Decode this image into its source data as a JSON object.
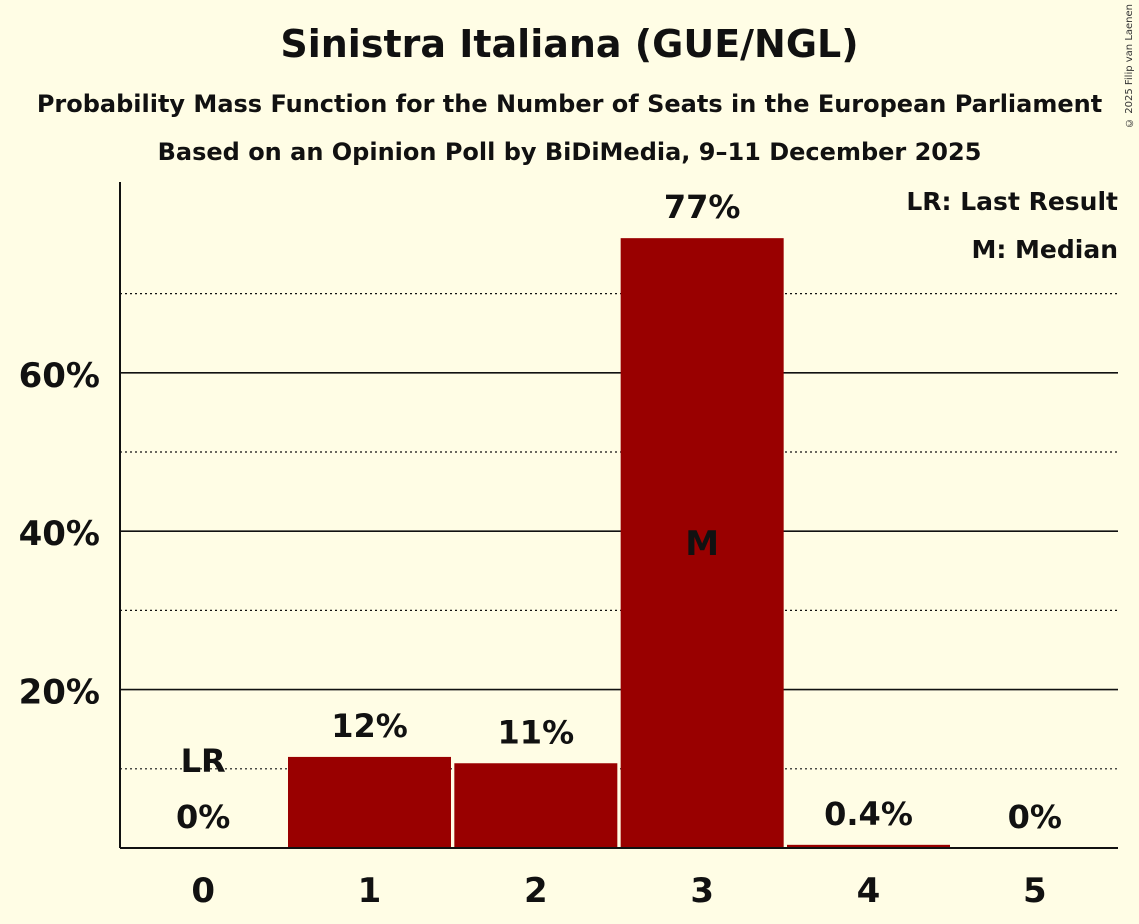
{
  "chart_data": {
    "type": "bar",
    "title": "Sinistra Italiana (GUE/NGL)",
    "subtitle": "Probability Mass Function for the Number of Seats in the European Parliament",
    "subtitle2": "Based on an Opinion Poll by BiDiMedia, 9–11 December 2025",
    "categories": [
      "0",
      "1",
      "2",
      "3",
      "4",
      "5"
    ],
    "values": [
      0,
      11.5,
      10.7,
      77,
      0.4,
      0
    ],
    "value_labels": [
      "0%",
      "12%",
      "11%",
      "77%",
      "0.4%",
      "0%"
    ],
    "ylim": [
      0,
      84
    ],
    "yticks": [
      20,
      40,
      60
    ],
    "ytick_labels": [
      "20%",
      "40%",
      "60%"
    ],
    "minor_gridlines": [
      10,
      30,
      50,
      70
    ],
    "last_result_category": "0",
    "last_result_marker": "LR",
    "median_category": "3",
    "median_marker": "M",
    "legend": [
      "LR: Last Result",
      "M: Median"
    ],
    "legend_position": "top-right",
    "bar_color": "#990000"
  },
  "copyright": "© 2025 Filip van Laenen"
}
